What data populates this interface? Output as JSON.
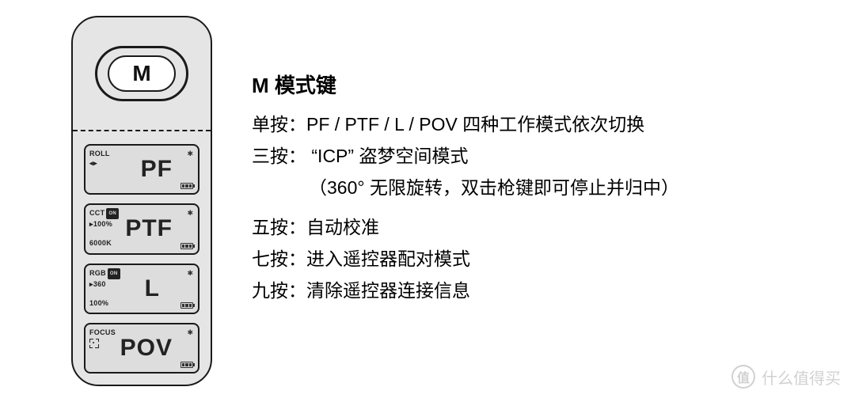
{
  "device": {
    "button_label": "M",
    "screens": [
      {
        "title": "ROLL",
        "sub1": "◂ ▸",
        "sub2": "",
        "mode": "PF",
        "on": false
      },
      {
        "title": "CCT",
        "sub1": "▸100%",
        "sub2": "6000K",
        "mode": "PTF",
        "on": true
      },
      {
        "title": "RGB",
        "sub1": "▸360",
        "sub2": "100%",
        "mode": "L",
        "on": true
      },
      {
        "title": "FOCUS",
        "sub1": "",
        "sub2": "",
        "mode": "POV",
        "on": false,
        "focus_icon": true
      }
    ]
  },
  "desc": {
    "title": "M 模式键",
    "lines": [
      "单按：PF / PTF / L / POV 四种工作模式依次切换",
      "三按：  “ICP” 盗梦空间模式",
      "（360° 无限旋转，双击枪键即可停止并归中）",
      "五按：自动校准",
      "七按：进入遥控器配对模式",
      "九按：清除遥控器连接信息"
    ]
  },
  "watermark": {
    "badge": "值",
    "text": "什么值得买"
  }
}
